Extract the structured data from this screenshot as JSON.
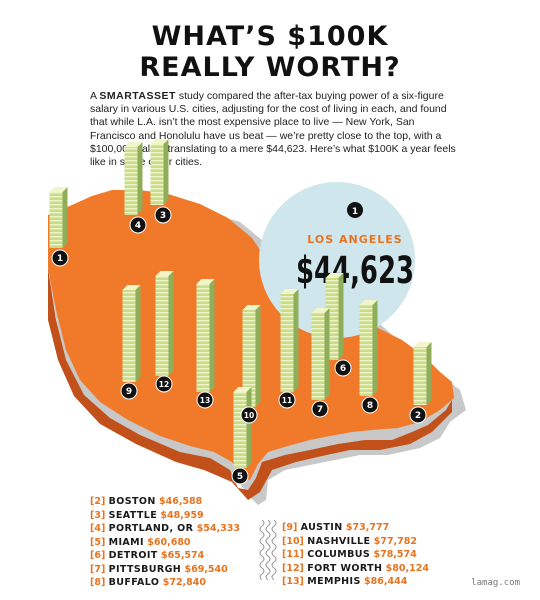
{
  "title": {
    "line1": "WHAT’S $100K",
    "line2": "REALLY WORTH?"
  },
  "intro": {
    "brand": "SMARTASSET",
    "text_before": "A",
    "text_after": "study compared the after-tax buying power of a six-figure salary in various U.S. cities, adjusting for the cost of living in each, and found that while L.A. isn’t the most expensive place to live — New York, San Francisco and Honolulu have us beat — we’re pretty close to the top, with a $100,000 salary translating to a mere $44,623. Here’s what $100K a year feels like in some other cities."
  },
  "highlight": {
    "rank": "1",
    "city": "LOS ANGELES",
    "value": "$44,623"
  },
  "colors": {
    "map": "#f07a2a",
    "map_side": "#c2501a",
    "shadow": "#c8c8c8",
    "circle": "#cfe7ec",
    "accent": "#e8731f",
    "money_light": "#d9e8a6",
    "money_dark": "#8fae5a",
    "money_band": "#f1f5c9"
  },
  "cities": [
    {
      "rank": "1",
      "city": "LOS ANGELES",
      "value": "$44,623"
    },
    {
      "rank": "2",
      "city": "BOSTON",
      "value": "$46,588"
    },
    {
      "rank": "3",
      "city": "SEATTLE",
      "value": "$48,959"
    },
    {
      "rank": "4",
      "city": "PORTLAND, OR",
      "value": "$54,333"
    },
    {
      "rank": "5",
      "city": "MIAMI",
      "value": "$60,680"
    },
    {
      "rank": "6",
      "city": "DETROIT",
      "value": "$65,574"
    },
    {
      "rank": "7",
      "city": "PITTSBURGH",
      "value": "$69,540"
    },
    {
      "rank": "8",
      "city": "BUFFALO",
      "value": "$72,840"
    },
    {
      "rank": "9",
      "city": "AUSTIN",
      "value": "$73,777"
    },
    {
      "rank": "10",
      "city": "NASHVILLE",
      "value": "$77,782"
    },
    {
      "rank": "11",
      "city": "COLUMBUS",
      "value": "$78,574"
    },
    {
      "rank": "12",
      "city": "FORT WORTH",
      "value": "$80,124"
    },
    {
      "rank": "13",
      "city": "MEMPHIS",
      "value": "$86,444"
    }
  ],
  "legend_left": [
    {
      "num": "[2]",
      "city": "BOSTON",
      "value": "$46,588"
    },
    {
      "num": "[3]",
      "city": "SEATTLE",
      "value": "$48,959"
    },
    {
      "num": "[4]",
      "city": "PORTLAND, OR",
      "value": "$54,333"
    },
    {
      "num": "[5]",
      "city": "MIAMI",
      "value": "$60,680"
    },
    {
      "num": "[6]",
      "city": "DETROIT",
      "value": "$65,574"
    },
    {
      "num": "[7]",
      "city": "PITTSBURGH",
      "value": "$69,540"
    },
    {
      "num": "[8]",
      "city": "BUFFALO",
      "value": "$72,840"
    }
  ],
  "legend_right": [
    {
      "num": "[9]",
      "city": "AUSTIN",
      "value": "$73,777"
    },
    {
      "num": "[10]",
      "city": "NASHVILLE",
      "value": "$77,782"
    },
    {
      "num": "[11]",
      "city": "COLUMBUS",
      "value": "$78,574"
    },
    {
      "num": "[12]",
      "city": "FORT WORTH",
      "value": "$80,124"
    },
    {
      "num": "[13]",
      "city": "MEMPHIS",
      "value": "$86,444"
    }
  ],
  "credit": "lamag.com"
}
